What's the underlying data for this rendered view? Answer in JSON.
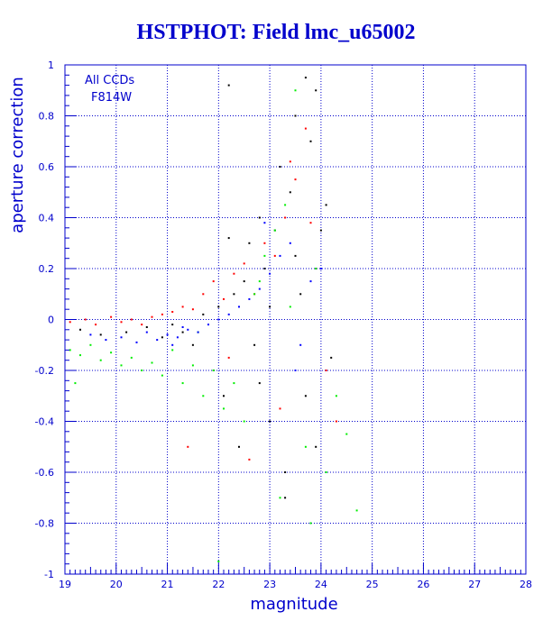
{
  "title": "HSTPHOT: Field lmc_u65002",
  "chart_data": {
    "type": "scatter",
    "title": "HSTPHOT: Field lmc_u65002",
    "xlabel": "magnitude",
    "ylabel": "aperture correction",
    "xlim": [
      19,
      28
    ],
    "ylim": [
      -1,
      1
    ],
    "x_ticks": [
      "19",
      "20",
      "21",
      "22",
      "23",
      "24",
      "25",
      "26",
      "27",
      "28"
    ],
    "y_ticks": [
      "-1",
      "-0.8",
      "-0.6",
      "-0.4",
      "-0.2",
      "0",
      "0.2",
      "0.4",
      "0.6",
      "0.8",
      "1"
    ],
    "grid": true,
    "annotations": [
      "All CCDs",
      "F814W"
    ],
    "colors": {
      "axis": "#0000cc",
      "grid": "#0000cc",
      "black": "#000000",
      "red": "#ff0000",
      "green": "#00ee00",
      "blue": "#0000ff"
    },
    "series": [
      {
        "color": "#000000",
        "x": [
          19.3,
          19.7,
          20.2,
          20.6,
          20.9,
          21.1,
          21.3,
          21.5,
          21.7,
          21.9,
          22.0,
          22.1,
          22.2,
          22.3,
          22.4,
          22.5,
          22.6,
          22.7,
          22.8,
          22.9,
          23.0,
          23.1,
          23.2,
          23.3,
          23.4,
          23.5,
          23.6,
          23.7,
          23.8,
          23.9,
          24.0,
          24.1,
          24.2,
          23.3,
          23.5,
          23.7,
          22.2,
          23.0,
          22.8,
          23.9
        ],
        "y": [
          -0.04,
          -0.06,
          -0.05,
          -0.03,
          -0.07,
          -0.02,
          -0.05,
          -0.1,
          0.02,
          -0.2,
          0.05,
          -0.3,
          0.92,
          0.1,
          -0.5,
          0.15,
          0.3,
          -0.1,
          0.4,
          0.2,
          -0.4,
          0.35,
          0.6,
          -0.6,
          0.5,
          0.8,
          0.1,
          -0.3,
          0.7,
          -0.5,
          0.35,
          0.45,
          -0.15,
          -0.7,
          0.25,
          0.95,
          0.32,
          0.05,
          -0.25,
          0.9
        ]
      },
      {
        "color": "#ff0000",
        "x": [
          19.1,
          19.4,
          19.6,
          19.9,
          20.1,
          20.3,
          20.5,
          20.7,
          20.9,
          21.1,
          21.3,
          21.5,
          21.7,
          21.9,
          22.1,
          22.3,
          22.5,
          22.7,
          22.9,
          23.1,
          23.3,
          23.5,
          23.7,
          23.9,
          24.1,
          24.3,
          22.6,
          23.4,
          22.2,
          23.8,
          21.4,
          23.2
        ],
        "y": [
          -0.01,
          0.0,
          -0.02,
          0.01,
          -0.01,
          0.0,
          -0.02,
          0.01,
          0.02,
          0.03,
          0.05,
          0.04,
          0.1,
          0.15,
          0.08,
          0.18,
          0.22,
          0.1,
          0.3,
          0.25,
          0.4,
          0.55,
          0.75,
          0.2,
          -0.2,
          -0.4,
          -0.55,
          0.62,
          -0.15,
          0.38,
          -0.5,
          -0.35
        ]
      },
      {
        "color": "#00ee00",
        "x": [
          19.1,
          19.3,
          19.5,
          19.7,
          19.9,
          20.1,
          20.3,
          20.5,
          20.7,
          20.9,
          21.1,
          21.3,
          21.5,
          21.7,
          21.9,
          22.1,
          22.3,
          22.5,
          22.7,
          22.9,
          23.1,
          23.3,
          23.5,
          23.7,
          23.9,
          24.1,
          24.3,
          24.5,
          24.7,
          22.0,
          23.4,
          23.8,
          21.6,
          22.8,
          23.2,
          19.2
        ],
        "y": [
          -0.12,
          -0.14,
          -0.1,
          -0.16,
          -0.13,
          -0.18,
          -0.15,
          -0.2,
          -0.17,
          -0.22,
          -0.12,
          -0.25,
          -0.18,
          -0.3,
          -0.2,
          -0.35,
          -0.25,
          -0.4,
          0.1,
          0.25,
          0.35,
          0.45,
          0.9,
          -0.5,
          0.2,
          -0.6,
          -0.3,
          -0.45,
          -0.75,
          -0.95,
          0.05,
          -0.8,
          -0.05,
          0.15,
          -0.7,
          -0.25
        ]
      },
      {
        "color": "#0000ff",
        "x": [
          19.5,
          19.8,
          20.1,
          20.4,
          20.6,
          20.8,
          21.0,
          21.2,
          21.4,
          21.6,
          21.8,
          22.0,
          22.2,
          22.4,
          22.6,
          22.8,
          23.0,
          23.2,
          23.4,
          23.6,
          23.8,
          24.0,
          21.1,
          21.3,
          22.9,
          23.5
        ],
        "y": [
          -0.06,
          -0.08,
          -0.07,
          -0.09,
          -0.05,
          -0.08,
          -0.06,
          -0.07,
          -0.04,
          -0.05,
          -0.02,
          0.0,
          0.02,
          0.05,
          0.08,
          0.12,
          0.18,
          0.25,
          0.3,
          -0.1,
          0.15,
          0.2,
          -0.1,
          -0.03,
          0.38,
          -0.2
        ]
      }
    ]
  }
}
